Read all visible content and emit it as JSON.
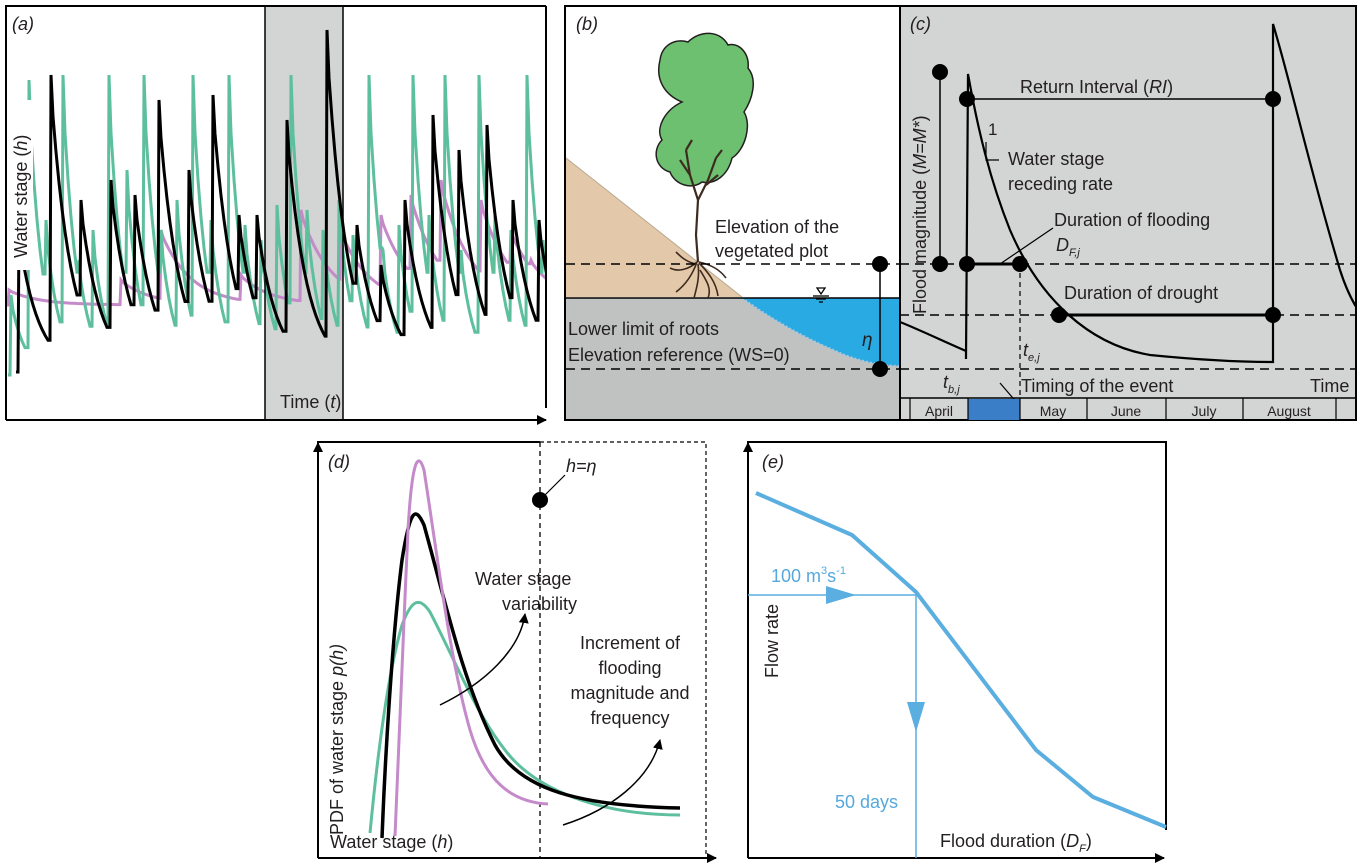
{
  "panels": {
    "a": {
      "label": "(a)",
      "ylabel": {
        "pre": "Water stage (",
        "var": "h",
        "post": ")"
      },
      "xlabel": {
        "pre": "Time (",
        "var": "t",
        "post": ")"
      }
    },
    "b": {
      "label": "(b)",
      "elevation_plot": [
        "Elevation of the",
        "vegetated plot"
      ],
      "roots": "Lower limit of roots",
      "reference": "Elevation reference (WS=0)",
      "eta": "η"
    },
    "c": {
      "label": "(c)",
      "ylabel": {
        "pre": "Flood magnitude (",
        "var": "M=M*",
        "post": ")"
      },
      "return_interval": {
        "pre": "Return Interval (",
        "var": "RI",
        "post": ")"
      },
      "slope_one": "1",
      "receding": [
        "Water stage",
        "receding rate"
      ],
      "duration_flooding": "Duration of flooding",
      "df_symbol": {
        "main": "D",
        "sub": "F,j"
      },
      "duration_drought": "Duration of drought",
      "te": {
        "main": "t",
        "sub": "e,j"
      },
      "tb": {
        "main": "t",
        "sub": "b,j"
      },
      "timing": "Timing of the event",
      "time": "Time",
      "months": [
        "April",
        "May",
        "June",
        "July",
        "August"
      ]
    },
    "d": {
      "label": "(d)",
      "h_eta": "h=η",
      "ylabel": {
        "pre": "PDF of water stage ",
        "var": "p(h)"
      },
      "xlabel": {
        "pre": "Water stage (",
        "var": "h",
        "post": ")"
      },
      "variability": [
        "Water stage",
        "variability"
      ],
      "increment": [
        "Increment of",
        "flooding",
        "magnitude and",
        "frequency"
      ]
    },
    "e": {
      "label": "(e)",
      "flow_value": {
        "main": "100 m",
        "sup1": "3",
        "mid": "s",
        "sup2": "-1"
      },
      "days": "50 days",
      "ylabel": "Flow rate",
      "xlabel": {
        "pre": "Flood duration (",
        "main": "D",
        "sub": "F",
        "post": ")"
      }
    }
  },
  "colors": {
    "green": "#5ebf9d",
    "purple": "#c48ac9",
    "black": "#000000",
    "blue_curve": "#5aaee0",
    "water": "#29aae2",
    "soil": "#e3c9a9",
    "ground": "#bfc2c0",
    "panel_c_bg": "#d3d4d4",
    "highlight_a": "#d3d4d4",
    "tree": "#6cc070",
    "trunk": "#3d2b1f",
    "may_block": "#3a7ec8"
  }
}
